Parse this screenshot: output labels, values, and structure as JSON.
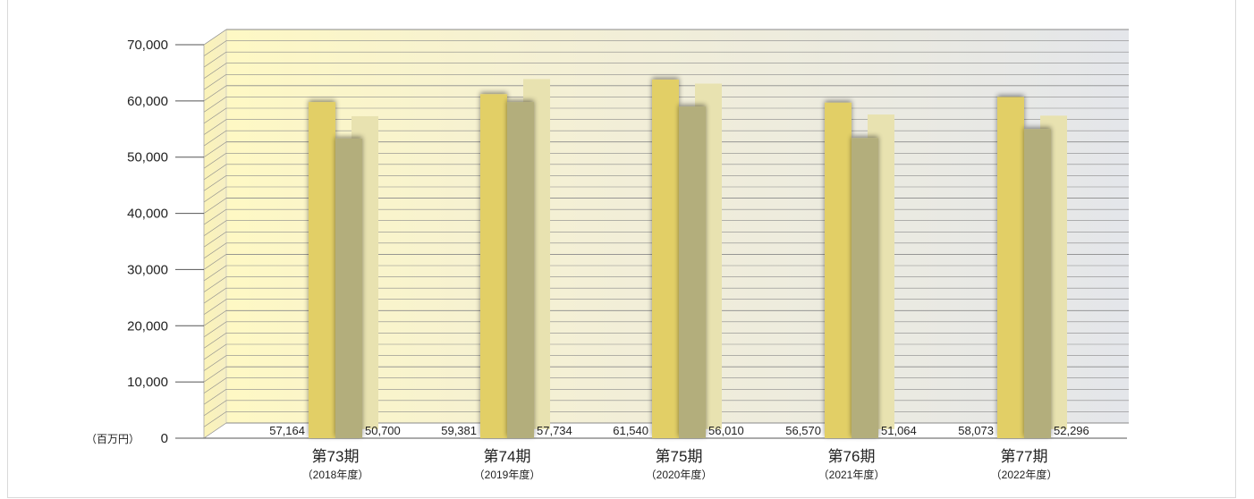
{
  "chart_data": {
    "type": "bar",
    "unit_label": "（百万円）",
    "ylim": [
      0,
      70000
    ],
    "y_ticks": [
      "0",
      "10,000",
      "20,000",
      "30,000",
      "40,000",
      "50,000",
      "60,000",
      "70,000"
    ],
    "grid": true,
    "categories": [
      {
        "label": "第73期",
        "sub": "（2018年度）"
      },
      {
        "label": "第74期",
        "sub": "（2019年度）"
      },
      {
        "label": "第75期",
        "sub": "（2020年度）"
      },
      {
        "label": "第76期",
        "sub": "（2021年度）"
      },
      {
        "label": "第77期",
        "sub": "（2022年度）"
      }
    ],
    "series": [
      {
        "values": [
          59800,
          61200,
          63800,
          59700,
          60700
        ],
        "color": "#e2cf66"
      },
      {
        "values": [
          53300,
          59800,
          59000,
          53400,
          55000
        ],
        "color": "#b3ae7c"
      },
      {
        "values": [
          56200,
          62800,
          62000,
          56500,
          56300
        ],
        "color": "#e8e2b0"
      }
    ],
    "data_labels": [
      {
        "left": "57,164",
        "right": "50,700"
      },
      {
        "left": "59,381",
        "right": "57,734"
      },
      {
        "left": "61,540",
        "right": "56,010"
      },
      {
        "left": "56,570",
        "right": "51,064"
      },
      {
        "left": "58,073",
        "right": "52,296"
      }
    ]
  },
  "colors": {
    "wall_left": "#fdf7c8",
    "wall_right": "#e6e8ec",
    "grid_line": "#8a8a8a",
    "axis_line": "#555555"
  }
}
